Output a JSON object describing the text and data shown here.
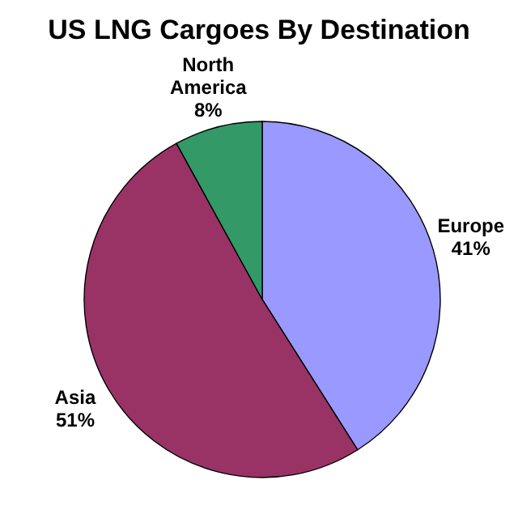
{
  "chart_data": {
    "type": "pie",
    "title": "US LNG Cargoes By Destination",
    "categories": [
      "Europe",
      "Asia",
      "North America"
    ],
    "values": [
      41,
      51,
      8
    ],
    "colors": [
      "#9999ff",
      "#993366",
      "#339966"
    ],
    "value_labels": [
      "41%",
      "51%",
      "8%"
    ]
  }
}
